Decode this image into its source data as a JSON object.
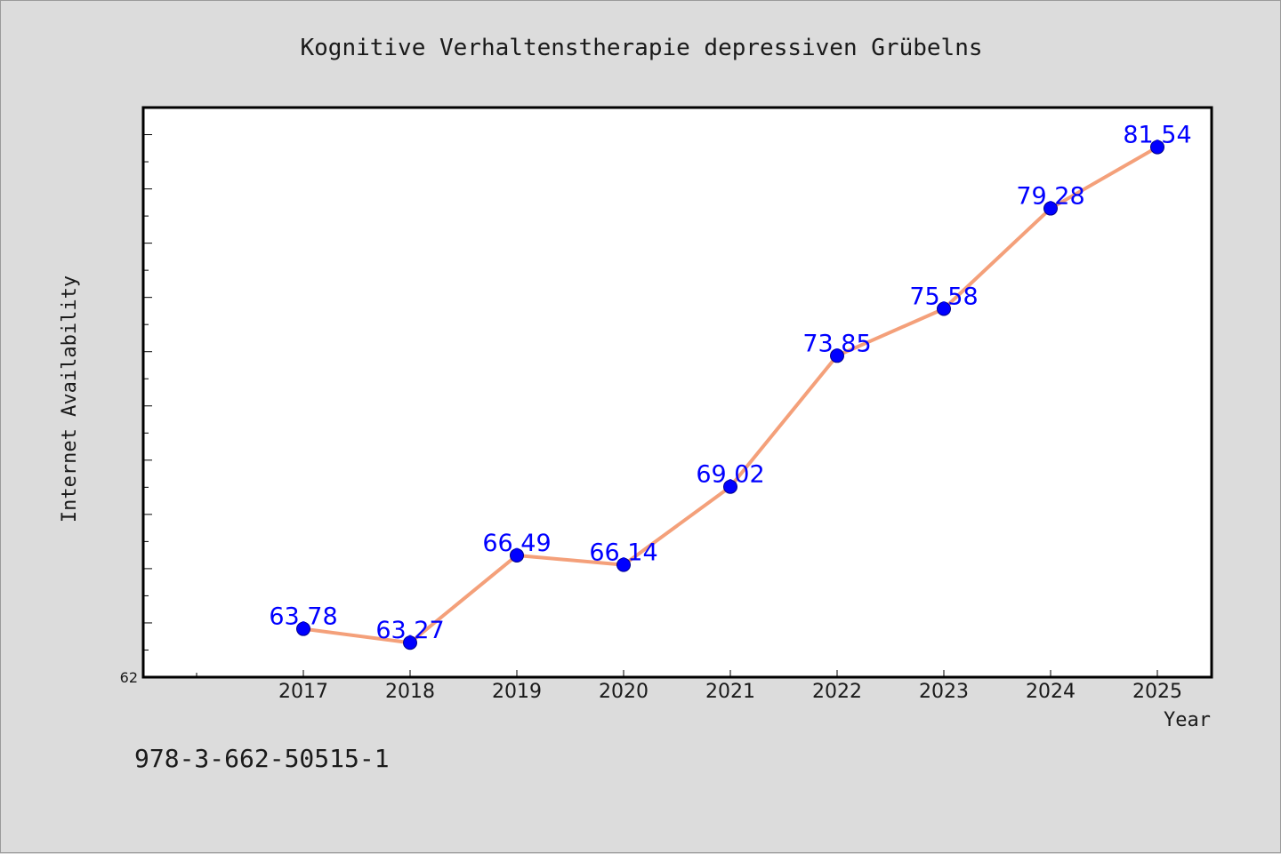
{
  "chart_data": {
    "type": "line",
    "title": "Kognitive Verhaltenstherapie depressiven Grübelns",
    "xlabel": "Year",
    "ylabel": "Internet Availability",
    "x": [
      "2017",
      "2018",
      "2019",
      "2020",
      "2021",
      "2022",
      "2023",
      "2024",
      "2025"
    ],
    "series": [
      {
        "values": [
          63.78,
          63.27,
          66.49,
          66.14,
          69.02,
          73.85,
          75.58,
          79.28,
          81.54
        ]
      }
    ],
    "data_labels": [
      "63.78",
      "63.27",
      "66.49",
      "66.14",
      "69.02",
      "73.85",
      "75.58",
      "79.28",
      "81.54"
    ],
    "y_tick_labels": [
      "62"
    ],
    "ylim": [
      62,
      83
    ],
    "grid": false,
    "colors": {
      "line": "#f4a07a",
      "marker": "#0000ff",
      "label": "#0000ff"
    }
  },
  "footnote": "978-3-662-50515-1"
}
